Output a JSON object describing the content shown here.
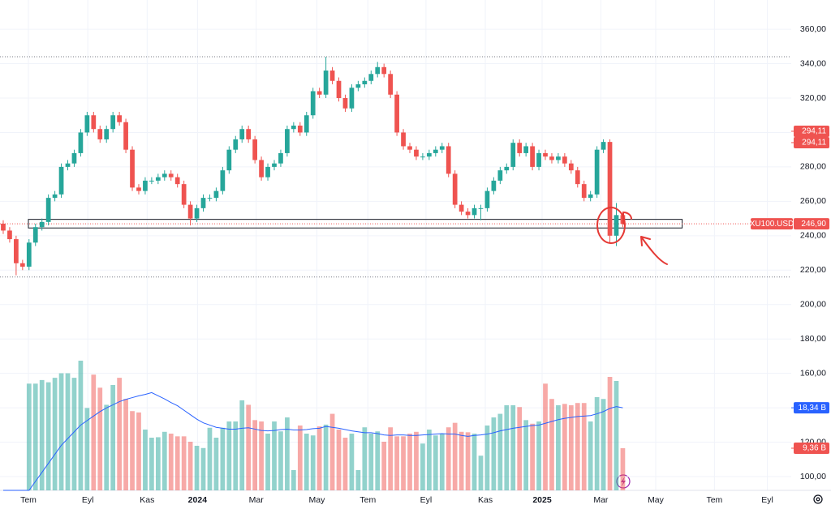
{
  "chart_data": {
    "type": "candlestick",
    "xlim": [
      -0.5,
      122.1
    ],
    "xticks": [
      {
        "value": 3.9,
        "label": "Tem"
      },
      {
        "value": 13.1,
        "label": "Eyl"
      },
      {
        "value": 22.3,
        "label": "Kas"
      },
      {
        "value": 30.1,
        "label": "2024"
      },
      {
        "value": 39.2,
        "label": "Mar"
      },
      {
        "value": 48.6,
        "label": "May"
      },
      {
        "value": 56.5,
        "label": "Tem"
      },
      {
        "value": 65.5,
        "label": "Eyl"
      },
      {
        "value": 74.7,
        "label": "Kas"
      },
      {
        "value": 83.5,
        "label": "2025"
      },
      {
        "value": 92.6,
        "label": "Mar"
      },
      {
        "value": 101.1,
        "label": "May"
      },
      {
        "value": 110.2,
        "label": "Tem"
      },
      {
        "value": 118.4,
        "label": "Eyl"
      }
    ],
    "ylim": [
      92,
      377
    ],
    "yticks": [
      {
        "value": 100,
        "label": "100,00"
      },
      {
        "value": 120,
        "label": "120,00"
      },
      {
        "value": 140,
        "label": "140,00"
      },
      {
        "value": 160,
        "label": "160,00"
      },
      {
        "value": 180,
        "label": "180,00"
      },
      {
        "value": 200,
        "label": "200,00"
      },
      {
        "value": 220,
        "label": "220,00"
      },
      {
        "value": 240,
        "label": "240,00"
      },
      {
        "value": 260,
        "label": "260,00"
      },
      {
        "value": 280,
        "label": "280,00"
      },
      {
        "value": 300,
        "label": "300,00"
      },
      {
        "value": 320,
        "label": "320,00"
      },
      {
        "value": 340,
        "label": "340,00"
      },
      {
        "value": 360,
        "label": "360,00"
      }
    ],
    "grid": true,
    "up_color": "#26a69a",
    "down_color": "#ef5350",
    "ma_color": "#2962ff",
    "open": [
      247,
      243,
      238,
      224,
      222,
      236,
      245,
      248,
      262,
      264,
      280,
      282,
      288,
      300,
      310,
      302,
      296,
      302,
      310,
      306,
      290,
      268,
      266,
      272,
      272,
      274,
      276,
      274,
      270,
      258,
      250,
      256,
      262,
      262,
      266,
      278,
      290,
      296,
      302,
      296,
      284,
      274,
      280,
      282,
      288,
      302,
      304,
      300,
      310,
      324,
      322,
      336,
      330,
      320,
      314,
      326,
      328,
      330,
      334,
      338,
      334,
      322,
      300,
      292,
      290,
      286,
      286,
      288,
      290,
      292,
      276,
      258,
      254,
      252,
      256,
      256,
      266,
      272,
      278,
      280,
      294,
      288,
      292,
      280,
      288,
      286,
      284,
      286,
      282,
      278,
      270,
      262,
      264,
      290,
      294.5,
      240,
      252
    ],
    "high": [
      249,
      245,
      240,
      226,
      238,
      247,
      250,
      264,
      266,
      282,
      284,
      290,
      302,
      312,
      312,
      304,
      304,
      312,
      312,
      308,
      292,
      270,
      274,
      274,
      276,
      278,
      278,
      276,
      272,
      260,
      258,
      264,
      264,
      268,
      280,
      292,
      298,
      304,
      304,
      298,
      286,
      282,
      284,
      290,
      304,
      306,
      306,
      312,
      326,
      326,
      344,
      338,
      332,
      322,
      328,
      330,
      332,
      336,
      341,
      340,
      336,
      324,
      302,
      294,
      292,
      288,
      290,
      292,
      294,
      294,
      278,
      260,
      256,
      258,
      258,
      268,
      274,
      280,
      282,
      296,
      296,
      294,
      294,
      290,
      290,
      288,
      288,
      288,
      284,
      280,
      272,
      266,
      292,
      296,
      296,
      259,
      254
    ],
    "low": [
      241,
      236,
      217,
      220,
      220,
      234,
      243,
      246,
      260,
      262,
      278,
      280,
      286,
      298,
      300,
      294,
      294,
      300,
      304,
      288,
      266,
      264,
      264,
      270,
      270,
      272,
      272,
      268,
      256,
      246,
      248,
      254,
      260,
      260,
      264,
      276,
      288,
      294,
      294,
      282,
      272,
      272,
      278,
      280,
      286,
      300,
      298,
      298,
      308,
      320,
      320,
      328,
      318,
      312,
      312,
      324,
      326,
      328,
      332,
      332,
      320,
      298,
      290,
      288,
      284,
      284,
      284,
      286,
      288,
      274,
      256,
      252,
      250,
      250,
      249,
      254,
      264,
      270,
      276,
      278,
      286,
      286,
      278,
      278,
      284,
      282,
      282,
      280,
      276,
      268,
      260,
      260,
      262,
      288,
      236,
      234,
      245
    ],
    "close": [
      243,
      238,
      224,
      222,
      236,
      245,
      248,
      262,
      264,
      280,
      282,
      288,
      300,
      310,
      302,
      296,
      302,
      310,
      306,
      290,
      268,
      266,
      272,
      272,
      274,
      276,
      274,
      270,
      258,
      250,
      256,
      262,
      262,
      266,
      278,
      290,
      296,
      302,
      296,
      284,
      274,
      280,
      282,
      288,
      302,
      304,
      300,
      310,
      324,
      322,
      336,
      330,
      320,
      314,
      326,
      328,
      330,
      334,
      338,
      334,
      322,
      300,
      292,
      290,
      286,
      286,
      288,
      290,
      292,
      276,
      258,
      254,
      252,
      256,
      256,
      266,
      272,
      278,
      280,
      294,
      288,
      292,
      280,
      288,
      286,
      284,
      286,
      282,
      278,
      270,
      262,
      264,
      290,
      294.5,
      240,
      252,
      246.9
    ],
    "volume": [
      null,
      null,
      null,
      null,
      23.7,
      23.7,
      24.5,
      24,
      25,
      26,
      26,
      25,
      28.8,
      18.3,
      25.7,
      22.8,
      19,
      23.4,
      25,
      20.3,
      17.6,
      17.3,
      13.5,
      11.7,
      11.8,
      13,
      12.6,
      12,
      12,
      10.8,
      9.9,
      9.4,
      13.9,
      11.7,
      13.9,
      15.3,
      15.3,
      20,
      19,
      15.6,
      15.3,
      12.6,
      15.3,
      13.1,
      16.2,
      4.5,
      14.4,
      12.6,
      12.2,
      14.2,
      14.6,
      17,
      13.5,
      11.7,
      12.6,
      4.5,
      14,
      12.6,
      13.1,
      10.8,
      14,
      12,
      12,
      12.6,
      13,
      10.4,
      13.5,
      12.2,
      12.6,
      14,
      15,
      13,
      12.9,
      12.6,
      7.7,
      14.4,
      16.2,
      17,
      18.9,
      18.9,
      18.5,
      15.6,
      14.8,
      15.3,
      23.7,
      20.3,
      18.9,
      19.2,
      18.9,
      19.4,
      19.4,
      15.3,
      20.7,
      20.3,
      25.2,
      24.3,
      9.36
    ],
    "volume_ma": [
      0,
      0,
      0,
      0,
      0,
      2,
      4,
      6,
      8,
      10,
      11.5,
      13,
      14.5,
      15.5,
      16.5,
      17.5,
      18.3,
      19,
      19.7,
      20.2,
      20.6,
      21,
      21.3,
      21.7,
      21,
      20.3,
      19.5,
      18.8,
      17.8,
      16.8,
      15.8,
      15,
      14.5,
      14,
      13.8,
      13.6,
      13.6,
      13.8,
      13.9,
      13.6,
      13.3,
      13.2,
      13.3,
      13.5,
      13.6,
      13.4,
      13.4,
      13.5,
      13.7,
      13.8,
      14.2,
      14,
      13.8,
      13.5,
      13.2,
      13,
      12.8,
      12.8,
      12.6,
      12.3,
      12.2,
      12.3,
      12.3,
      12.2,
      12.2,
      12.3,
      12.4,
      12.5,
      12.6,
      12.5,
      12.5,
      12.2,
      12,
      12.2,
      12.3,
      12.5,
      12.8,
      13.2,
      13.5,
      13.8,
      14,
      14.2,
      14.4,
      14.5,
      14.9,
      15.3,
      15.7,
      16,
      16.2,
      16.4,
      16.5,
      16.6,
      17,
      17.5,
      18.2,
      18.6,
      18.34
    ],
    "y2lim": [
      0,
      36
    ],
    "levels": [
      344,
      216
    ],
    "zone": {
      "low": 244.5,
      "high": 249.5,
      "x": [
        3.9,
        105.2
      ]
    },
    "price_badges": [
      {
        "value": 294.11,
        "label": "294,11"
      },
      {
        "value": 294.11,
        "label": "294,11"
      }
    ],
    "last_price": {
      "name": "XU100.USD",
      "value": 246.9,
      "label": "246,90"
    },
    "volume_badges": [
      {
        "value": 18.34,
        "label": "18,34 B",
        "color": "#2962ff"
      },
      {
        "value": 9.36,
        "label": "9,36 B",
        "color": "#ef5350"
      }
    ]
  }
}
